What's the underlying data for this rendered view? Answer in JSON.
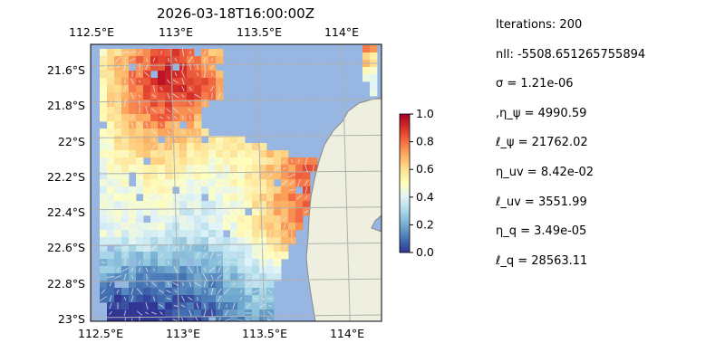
{
  "chart_data": {
    "type": "heatmap",
    "title": "2026-03-18T16:00:00Z",
    "x_ticks": [
      "112.5°E",
      "113°E",
      "113.5°E",
      "114°E"
    ],
    "x_tick_values": [
      112.5,
      113.0,
      113.5,
      114.0
    ],
    "y_ticks": [
      "21.6°S",
      "21.8°S",
      "22°S",
      "22.2°S",
      "22.4°S",
      "22.6°S",
      "22.8°S",
      "23°S"
    ],
    "y_tick_values": [
      -21.6,
      -21.8,
      -22.0,
      -22.2,
      -22.4,
      -22.6,
      -22.8,
      -23.0
    ],
    "xlim": [
      112.5,
      114.2
    ],
    "ylim": [
      -23.02,
      -21.48
    ],
    "grid": true,
    "colorbar": {
      "ticks": [
        "0.0",
        "0.2",
        "0.4",
        "0.6",
        "0.8",
        "1.0"
      ],
      "tick_values": [
        0.0,
        0.2,
        0.4,
        0.6,
        0.8,
        1.0
      ],
      "range": [
        0,
        1
      ],
      "colormap": "RdYlBu_r"
    },
    "ocean_color": "#97b6e1",
    "land_color": "#efefdf",
    "vector_color": "#e8e8f0"
  },
  "stats": {
    "iterations": "Iterations: 200",
    "nll": "nll: -5508.651265755894",
    "sigma": "σ = 1.21e-06",
    "eta_psi": ",η_ψ = 4990.59",
    "ell_psi": "ℓ_ψ = 21762.02",
    "eta_uv": "η_uv = 8.42e-02",
    "ell_uv": "ℓ_uv = 3551.99",
    "eta_q": "η_q = 3.49e-05",
    "ell_q": "ℓ_q = 28563.11"
  }
}
